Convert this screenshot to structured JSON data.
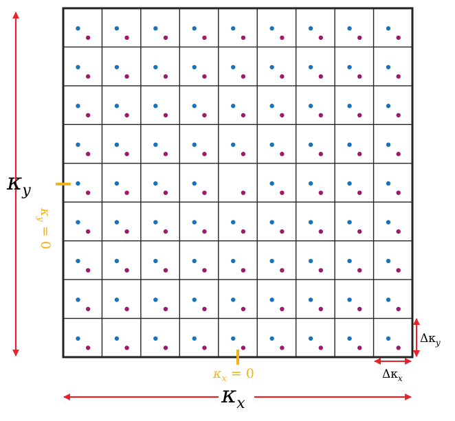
{
  "grid": {
    "rows": 9,
    "cols": 9,
    "missing_blue": [
      [
        4,
        4
      ]
    ]
  },
  "labels": {
    "kx_axis": {
      "base": "κ",
      "sub": "x"
    },
    "ky_axis": {
      "base": "κ",
      "sub": "y"
    },
    "kx_zero": {
      "base": "κ",
      "sub": "x",
      "rest": " = 0"
    },
    "ky_zero": {
      "base": "κ",
      "sub": "y",
      "rest": " = 0"
    },
    "dkx": {
      "base": "Δκ",
      "sub": "x"
    },
    "dky": {
      "base": "Δκ",
      "sub": "y"
    }
  },
  "colors": {
    "grid": "#222222",
    "blue_dot": "#1a73b8",
    "purple_dot": "#9b1b6a",
    "axis_arrow": "#e8212a",
    "zero_mark": "#f2b21a"
  }
}
